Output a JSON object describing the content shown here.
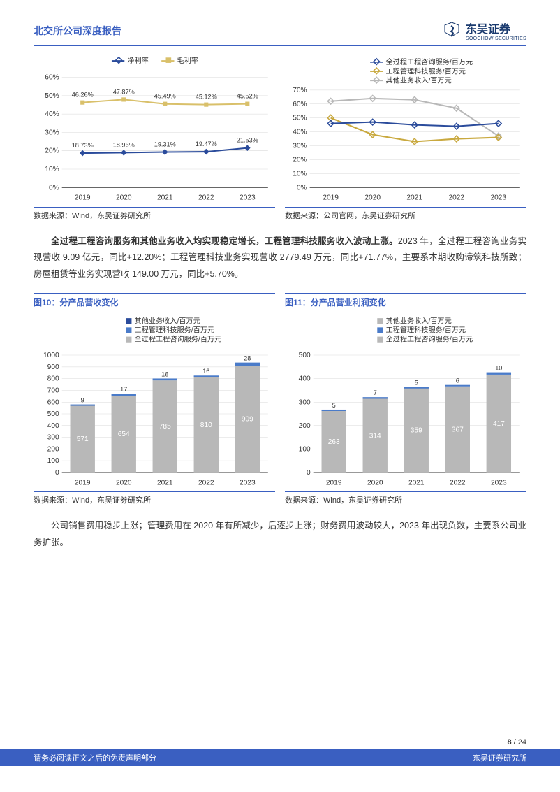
{
  "header": {
    "title": "北交所公司深度报告",
    "logo_cn": "东吴证券",
    "logo_en": "SOOCHOW SECURITIES"
  },
  "chart1": {
    "legend": [
      {
        "name": "净利率",
        "color": "#2a4b9b",
        "marker": "diamond"
      },
      {
        "name": "毛利率",
        "color": "#d9c06a",
        "marker": "square"
      }
    ],
    "years": [
      "2019",
      "2020",
      "2021",
      "2022",
      "2023"
    ],
    "series1": {
      "values": [
        18.73,
        18.96,
        19.31,
        19.47,
        21.53
      ],
      "labels": [
        "18.73%",
        "18.96%",
        "19.31%",
        "19.47%",
        "21.53%"
      ],
      "color": "#2a4b9b"
    },
    "series2": {
      "values": [
        46.26,
        47.87,
        45.49,
        45.12,
        45.52
      ],
      "labels": [
        "46.26%",
        "47.87%",
        "45.49%",
        "45.12%",
        "45.52%"
      ],
      "color": "#d9c06a"
    },
    "ylim": [
      0,
      60
    ],
    "ytick": 10,
    "grid_color": "#d9d9d9"
  },
  "chart1_source": "数据来源：Wind，东吴证券研究所",
  "chart2": {
    "legend": [
      {
        "name": "全过程工程咨询服务/百万元",
        "color": "#2a4b9b",
        "marker": "diamond"
      },
      {
        "name": "工程管理科技服务/百万元",
        "color": "#c9a93f",
        "marker": "diamond"
      },
      {
        "name": "其他业务收入/百万元",
        "color": "#b8b8b8",
        "marker": "diamond"
      }
    ],
    "years": [
      "2019",
      "2020",
      "2021",
      "2022",
      "2023"
    ],
    "s1": {
      "values": [
        46,
        47,
        45,
        44,
        46
      ],
      "color": "#2a4b9b"
    },
    "s2": {
      "values": [
        50,
        38,
        33,
        35,
        36
      ],
      "color": "#c9a93f"
    },
    "s3": {
      "values": [
        62,
        64,
        63,
        57,
        37
      ],
      "color": "#b8b8b8"
    },
    "ylim": [
      0,
      70
    ],
    "ytick": 10,
    "grid_color": "#d9d9d9"
  },
  "chart2_source": "数据来源：公司官网，东吴证券研究所",
  "para1_bold": "全过程工程咨询服务和其他业务收入均实现稳定增长，工程管理科技服务收入波动上涨。",
  "para1_rest": "2023 年，全过程工程咨询业务实现营收 9.09 亿元，同比+12.20%；工程管理科技业务实现营收 2779.49 万元，同比+71.77%，主要系本期收购谛筑科技所致；房屋租赁等业务实现营收 149.00 万元，同比+5.70%。",
  "fig10_title": "图10：分产品营收变化",
  "fig11_title": "图11：分产品营业利润变化",
  "chart3": {
    "legend": [
      {
        "name": "其他业务收入/百万元",
        "color": "#2a4b9b"
      },
      {
        "name": "工程管理科技服务/百万元",
        "color": "#4a7bc9"
      },
      {
        "name": "全过程工程咨询服务/百万元",
        "color": "#b8b8b8"
      }
    ],
    "years": [
      "2019",
      "2020",
      "2021",
      "2022",
      "2023"
    ],
    "grey": [
      571,
      654,
      785,
      810,
      909
    ],
    "blue": [
      9,
      17,
      16,
      16,
      28
    ],
    "grey_labels": [
      "571",
      "654",
      "785",
      "810",
      "909"
    ],
    "blue_labels": [
      "9",
      "17",
      "16",
      "16",
      "28"
    ],
    "ylim": [
      0,
      1000
    ],
    "ytick": 100,
    "grid_color": "#d9d9d9",
    "bar_color_grey": "#b8b8b8",
    "bar_color_blue": "#4a7bc9"
  },
  "chart3_source": "数据来源：Wind，东吴证券研究所",
  "chart4": {
    "legend": [
      {
        "name": "其他业务收入/百万元",
        "color": "#b8b8b8"
      },
      {
        "name": "工程管理科技服务/百万元",
        "color": "#4a7bc9"
      },
      {
        "name": "全过程工程咨询服务/百万元",
        "color": "#b8b8b8"
      }
    ],
    "years": [
      "2019",
      "2020",
      "2021",
      "2022",
      "2023"
    ],
    "grey": [
      263,
      314,
      359,
      367,
      417
    ],
    "blue": [
      5,
      7,
      5,
      6,
      10
    ],
    "grey_labels": [
      "263",
      "314",
      "359",
      "367",
      "417"
    ],
    "blue_labels": [
      "5",
      "7",
      "5",
      "6",
      "10"
    ],
    "ylim": [
      0,
      500
    ],
    "ytick": 100,
    "grid_color": "#d9d9d9",
    "bar_color_grey": "#b8b8b8",
    "bar_color_blue": "#4a7bc9"
  },
  "chart4_source": "数据来源：Wind，东吴证券研究所",
  "para2": "公司销售费用稳步上涨；管理费用在 2020 年有所减少，后逐步上涨；财务费用波动较大，2023 年出现负数，主要系公司业务扩张。",
  "footer": {
    "page_current": "8",
    "page_total": "24",
    "disclaimer": "请务必阅读正文之后的免责声明部分",
    "company": "东吴证券研究所"
  }
}
